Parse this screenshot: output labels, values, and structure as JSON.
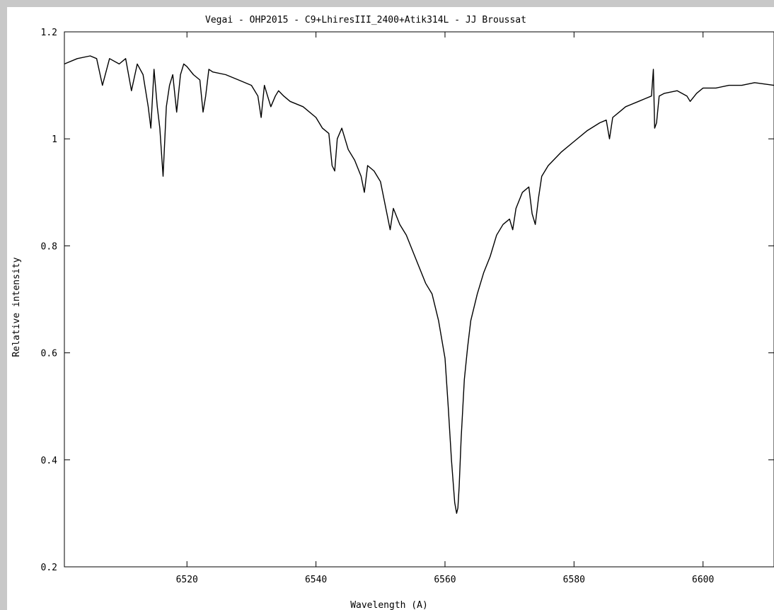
{
  "chart_data": {
    "type": "line",
    "title": "Vegai - OHP2015 - C9+LhiresIII_2400+Atik314L - JJ Broussat",
    "xlabel": "Wavelength (A)",
    "ylabel": "Relative intensity",
    "xlim": [
      6501,
      6611
    ],
    "ylim": [
      0.2,
      1.2
    ],
    "x_ticks": [
      6520,
      6540,
      6560,
      6580,
      6600
    ],
    "x_tick_labels": [
      "6520",
      "6540",
      "6560",
      "6580",
      "6600"
    ],
    "y_ticks": [
      0.2,
      0.4,
      0.6,
      0.8,
      1.0,
      1.2
    ],
    "y_tick_labels": [
      "0.2",
      "0.4",
      "0.6",
      "0.8",
      "1",
      "1.2"
    ],
    "grid": false,
    "line_color": "#000000",
    "series": [
      {
        "x": [
          6501,
          6503,
          6505,
          6506,
          6506.9,
          6508,
          6509.5,
          6510.5,
          6511.4,
          6512.3,
          6513.2,
          6514.0,
          6514.4,
          6514.9,
          6515.4,
          6515.8,
          6516.3,
          6516.8,
          6517.3,
          6517.8,
          6518.4,
          6519,
          6519.5,
          6520,
          6521,
          6522,
          6522.5,
          6522.9,
          6523.4,
          6524,
          6526,
          6528,
          6530,
          6531,
          6531.5,
          6532,
          6532.5,
          6533,
          6533.7,
          6534.2,
          6535,
          6536,
          6538,
          6540,
          6541,
          6542,
          6542.5,
          6542.9,
          6543.3,
          6544,
          6545,
          6546,
          6547,
          6547.5,
          6548,
          6549,
          6550,
          6551,
          6551.5,
          6552,
          6553,
          6554,
          6555,
          6556,
          6557,
          6558,
          6559,
          6560,
          6560.5,
          6561,
          6561.5,
          6561.8,
          6562,
          6562.2,
          6562.5,
          6563,
          6563.5,
          6564,
          6565,
          6566,
          6567,
          6568,
          6569,
          6570,
          6570.5,
          6571,
          6572,
          6573,
          6573.5,
          6574,
          6574.5,
          6575,
          6576,
          6578,
          6580,
          6582,
          6584,
          6585,
          6585.5,
          6586,
          6587,
          6588,
          6590,
          6591,
          6592,
          6592.3,
          6592.5,
          6592.8,
          6593.2,
          6594,
          6596,
          6597.5,
          6598,
          6599,
          6600,
          6602,
          6604,
          6606,
          6608,
          6611
        ],
        "y": [
          1.14,
          1.15,
          1.155,
          1.15,
          1.1,
          1.15,
          1.14,
          1.15,
          1.09,
          1.14,
          1.12,
          1.06,
          1.02,
          1.13,
          1.06,
          1.02,
          0.93,
          1.06,
          1.1,
          1.12,
          1.05,
          1.12,
          1.14,
          1.135,
          1.12,
          1.11,
          1.05,
          1.08,
          1.13,
          1.125,
          1.12,
          1.11,
          1.1,
          1.08,
          1.04,
          1.1,
          1.08,
          1.06,
          1.08,
          1.09,
          1.08,
          1.07,
          1.06,
          1.04,
          1.02,
          1.01,
          0.95,
          0.94,
          1.0,
          1.02,
          0.98,
          0.96,
          0.93,
          0.9,
          0.95,
          0.94,
          0.92,
          0.86,
          0.83,
          0.87,
          0.84,
          0.82,
          0.79,
          0.76,
          0.73,
          0.71,
          0.66,
          0.59,
          0.5,
          0.4,
          0.32,
          0.3,
          0.31,
          0.35,
          0.44,
          0.55,
          0.61,
          0.66,
          0.71,
          0.75,
          0.78,
          0.82,
          0.84,
          0.85,
          0.83,
          0.87,
          0.9,
          0.91,
          0.86,
          0.84,
          0.89,
          0.93,
          0.95,
          0.975,
          0.995,
          1.015,
          1.03,
          1.035,
          1.0,
          1.04,
          1.05,
          1.06,
          1.07,
          1.075,
          1.08,
          1.13,
          1.02,
          1.03,
          1.08,
          1.085,
          1.09,
          1.08,
          1.07,
          1.085,
          1.095,
          1.095,
          1.1,
          1.1,
          1.105,
          1.1
        ]
      }
    ]
  }
}
